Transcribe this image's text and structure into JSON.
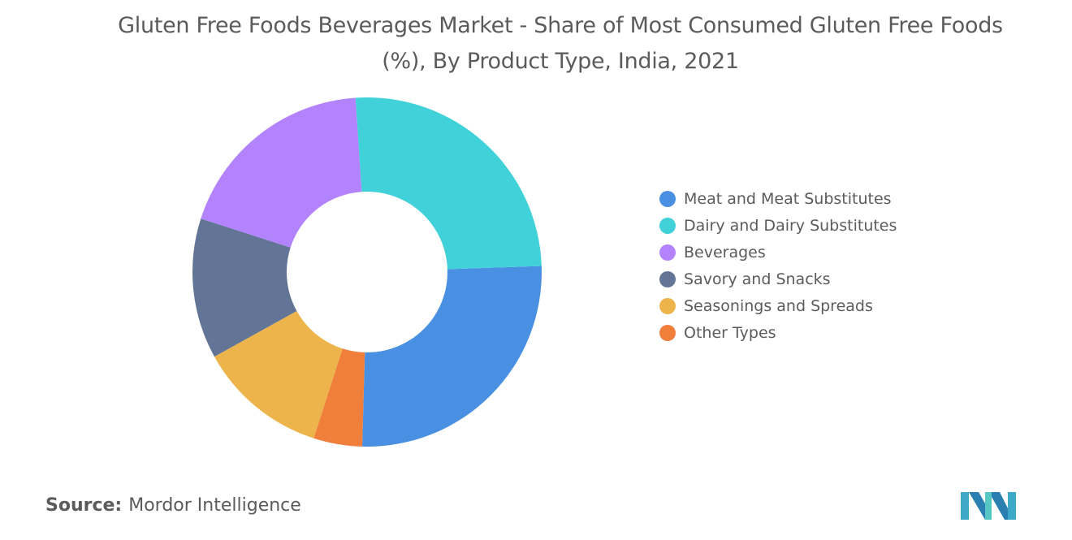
{
  "title": "Gluten Free Foods Beverages Market - Share of Most Consumed Gluten Free Foods (%), By Product Type, India, 2021",
  "source": {
    "label": "Source:",
    "value": "Mordor Intelligence"
  },
  "logo": {
    "name": "mordor-intelligence-logo"
  },
  "chart_data": {
    "type": "pie",
    "variant": "donut",
    "title": "Gluten Free Foods Beverages Market - Share of Most Consumed Gluten Free Foods (%), By Product Type, India, 2021",
    "unit": "%",
    "start_angle_deg": -2,
    "direction": "clockwise",
    "legend_position": "right",
    "categories": [
      "Meat and Meat Substitutes",
      "Dairy and Dairy Substitutes",
      "Beverages",
      "Savory and Snacks",
      "Seasonings and Spreads",
      "Other Types"
    ],
    "slice_order": [
      "Meat and Meat Substitutes",
      "Other Types",
      "Seasonings and Spreads",
      "Savory and Snacks",
      "Beverages",
      "Dairy and Dairy Substitutes"
    ],
    "values": {
      "Meat and Meat Substitutes": 26.0,
      "Other Types": 4.5,
      "Seasonings and Spreads": 12.0,
      "Savory and Snacks": 13.0,
      "Beverages": 19.0,
      "Dairy and Dairy Substitutes": 25.5
    },
    "colors": {
      "Meat and Meat Substitutes": "#4a90e2",
      "Dairy and Dairy Substitutes": "#41d1d9",
      "Beverages": "#b283fd",
      "Savory and Snacks": "#637596",
      "Seasonings and Spreads": "#ecb44a",
      "Other Types": "#f07f3c"
    }
  }
}
